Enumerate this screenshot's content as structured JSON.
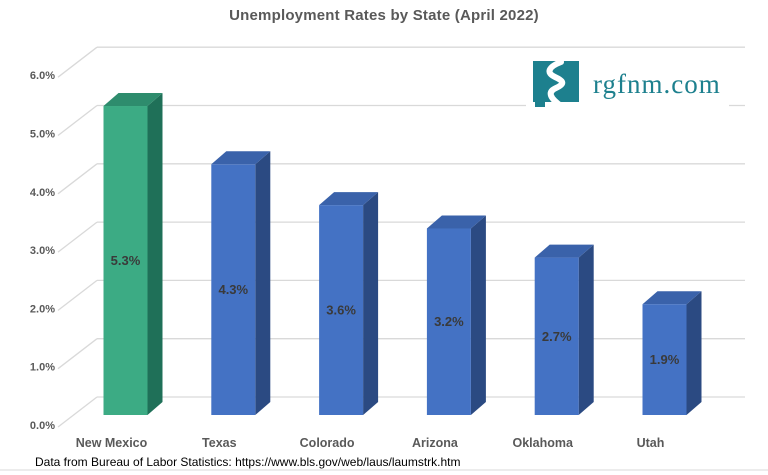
{
  "title": "Unemployment Rates by State (April 2022)",
  "logo": {
    "text": "rgfnm.com",
    "color": "#1D808E",
    "icon": "new-mexico-river-icon"
  },
  "footer": {
    "text": "Data from Bureau of Labor Statistics: https://www.bls.gov/web/laus/laumstrk.htm"
  },
  "chart_data": {
    "type": "bar",
    "style": "3d-column",
    "title": "Unemployment Rates by State (April 2022)",
    "categories": [
      "New Mexico",
      "Texas",
      "Colorado",
      "Arizona",
      "Oklahoma",
      "Utah"
    ],
    "values": [
      5.3,
      4.3,
      3.6,
      3.2,
      2.7,
      1.9
    ],
    "data_labels": [
      "5.3%",
      "4.3%",
      "3.6%",
      "3.2%",
      "2.7%",
      "1.9%"
    ],
    "bar_styles": [
      "green",
      "blue",
      "blue",
      "blue",
      "blue",
      "blue"
    ],
    "palettes": {
      "green": {
        "front": "#3CAB84",
        "top": "#2E8C6D",
        "side": "#1F7058"
      },
      "blue": {
        "front": "#4472C4",
        "top": "#3A62AA",
        "side": "#2B4A82"
      }
    },
    "xlabel": "",
    "ylabel": "",
    "ylim": [
      0,
      6
    ],
    "ytick_step": 1,
    "ytick_labels": [
      "0.0%",
      "1.0%",
      "2.0%",
      "3.0%",
      "4.0%",
      "5.0%",
      "6.0%"
    ],
    "grid": true,
    "legend": false,
    "gridline_color": "#D9D9D9",
    "axis_label_color": "#595959",
    "data_label_color": "#3A3A3A"
  }
}
